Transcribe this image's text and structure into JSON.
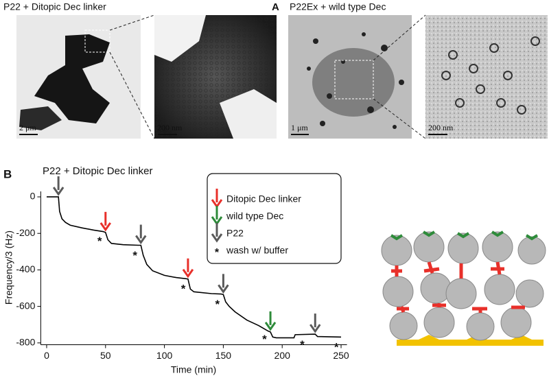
{
  "panel_a": {
    "label": "A",
    "titles": [
      "P22 + Ditopic Dec linker",
      "P22Ex + wild type Dec"
    ],
    "scale_bars": [
      "2 μm",
      "200 nm",
      "1 μm",
      "200 nm"
    ]
  },
  "chart_data": {
    "type": "line",
    "panel_label": "B",
    "title": "P22 + Ditopic Dec linker",
    "x_label": "Time (min)",
    "y_label": "Frequency/3 (Hz)",
    "color": "#000000",
    "x": [
      0,
      10,
      11,
      13,
      16,
      20,
      30,
      40,
      48,
      50,
      52,
      55,
      65,
      78,
      80,
      82,
      85,
      90,
      100,
      110,
      118,
      120,
      122,
      125,
      140,
      148,
      150,
      152,
      155,
      160,
      170,
      180,
      188,
      190,
      192,
      195,
      210,
      211,
      228,
      230,
      250
    ],
    "values": [
      0,
      0,
      -80,
      -120,
      -140,
      -155,
      -170,
      -182,
      -190,
      -195,
      -235,
      -255,
      -262,
      -265,
      -265,
      -320,
      -370,
      -405,
      -430,
      -442,
      -448,
      -450,
      -505,
      -520,
      -530,
      -532,
      -535,
      -575,
      -600,
      -630,
      -675,
      -705,
      -735,
      -740,
      -768,
      -772,
      -772,
      -755,
      -752,
      -765,
      -768
    ],
    "xlim": [
      -5,
      255
    ],
    "xticks": [
      0,
      50,
      100,
      150,
      200,
      250
    ],
    "ylim": [
      -810,
      30
    ],
    "yticks": [
      0,
      -200,
      -400,
      -600,
      -800
    ],
    "arrows": [
      {
        "name": "Ditopic Dec linker",
        "color": "#e8302a",
        "x": [
          50,
          120
        ]
      },
      {
        "name": "wild type Dec",
        "color": "#2e8b3a",
        "x": [
          190
        ]
      },
      {
        "name": "P22",
        "color": "#5a5a5a",
        "x": [
          10,
          80,
          150,
          228
        ]
      }
    ],
    "washes": {
      "name": "wash w/ buffer",
      "symbol": "*",
      "x": [
        45,
        75,
        116,
        145,
        185,
        217,
        246
      ]
    }
  }
}
